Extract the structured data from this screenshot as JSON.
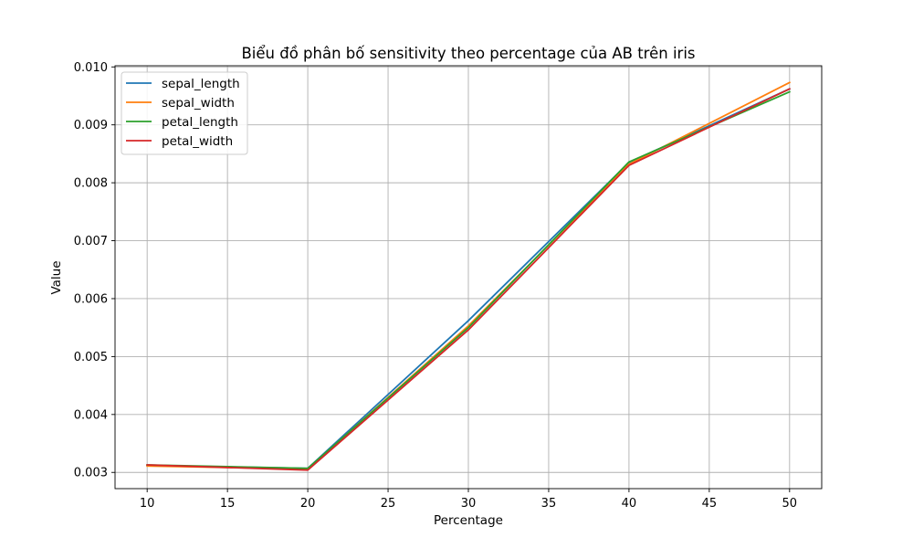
{
  "chart_data": {
    "type": "line",
    "title": "Biểu đồ phân bố sensitivity theo percentage của AB trên iris",
    "xlabel": "Percentage",
    "ylabel": "Value",
    "x": [
      10,
      20,
      30,
      40,
      50
    ],
    "xticks": [
      "10",
      "15",
      "20",
      "25",
      "30",
      "35",
      "40",
      "45",
      "50"
    ],
    "yticks": [
      "0.003",
      "0.004",
      "0.005",
      "0.006",
      "0.007",
      "0.008",
      "0.009",
      "0.010"
    ],
    "xlim": [
      8,
      52
    ],
    "ylim": [
      0.00272,
      0.01002
    ],
    "grid": true,
    "legend_position": "top-left",
    "series": [
      {
        "name": "sepal_length",
        "color": "#1f77b4",
        "values": [
          0.00312,
          0.00307,
          0.00562,
          0.00835,
          0.00962
        ]
      },
      {
        "name": "sepal_width",
        "color": "#ff7f0e",
        "values": [
          0.00311,
          0.00306,
          0.00553,
          0.00832,
          0.00973
        ]
      },
      {
        "name": "petal_length",
        "color": "#2ca02c",
        "values": [
          0.00313,
          0.00307,
          0.0055,
          0.00836,
          0.00957
        ]
      },
      {
        "name": "petal_width",
        "color": "#d62728",
        "values": [
          0.00313,
          0.00304,
          0.00546,
          0.0083,
          0.00962
        ]
      }
    ]
  }
}
